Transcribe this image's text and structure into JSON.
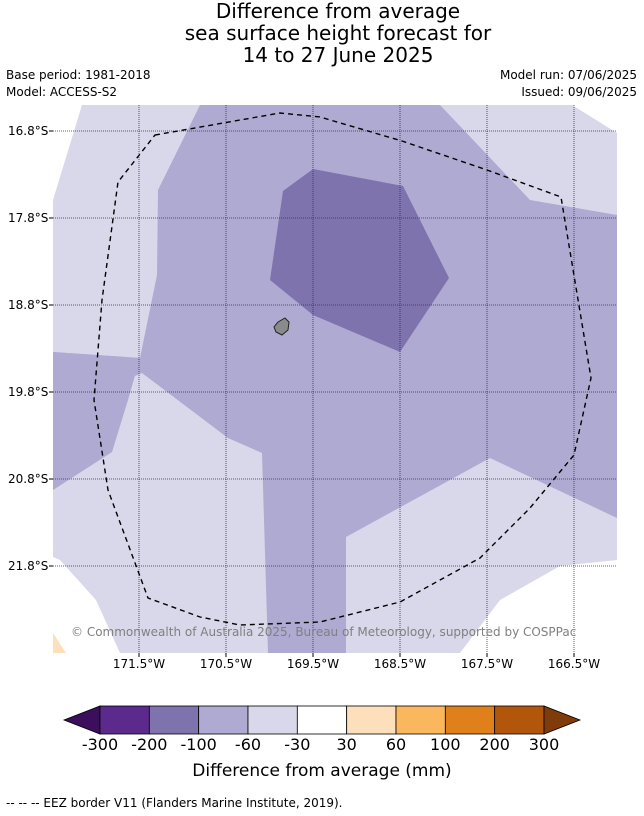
{
  "title": {
    "line1": "Difference from average",
    "line2": "sea surface height forecast for",
    "line3": "14 to 27 June 2025"
  },
  "meta": {
    "base_period": "Base period: 1981-2018",
    "model": "Model: ACCESS-S2",
    "model_run": "Model run: 07/06/2025",
    "issued": "Issued: 09/06/2025"
  },
  "map": {
    "lat_labels": [
      "16.8°S",
      "17.8°S",
      "18.8°S",
      "19.8°S",
      "20.8°S",
      "21.8°S"
    ],
    "lon_labels": [
      "171.5°W",
      "170.5°W",
      "169.5°W",
      "168.5°W",
      "167.5°W",
      "166.5°W"
    ],
    "copyright": "© Commonwealth of Australia 2025, Bureau of Meteorology, supported by COSPPac",
    "colors": {
      "-100 to -60": "#aeaad1",
      "-200 to -100": "#7f73ae",
      "-60 to -30": "#d8d8ea",
      "30 to 60": "#fde0bb",
      "land": "#8a8a8a",
      "eez_border": "#000000"
    }
  },
  "colorbar": {
    "ticks": [
      "-300",
      "-200",
      "-100",
      "-60",
      "-30",
      "30",
      "60",
      "100",
      "200",
      "300"
    ],
    "colors": [
      "#3b0f5c",
      "#5c2a8c",
      "#7f73ae",
      "#aeaad1",
      "#d8d8ea",
      "#ffffff",
      "#fde0bb",
      "#fbb75e",
      "#e0801a",
      "#b1560a",
      "#7f3b0a"
    ],
    "label": "Difference from average (mm)"
  },
  "legend_note": "--  --  -- EEZ border V11 (Flanders Marine Institute, 2019)."
}
